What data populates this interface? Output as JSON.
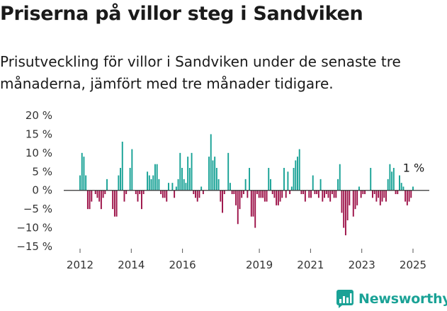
{
  "title": "Priserna på villor steg i Sandviken",
  "subtitle": "Prisutveckling för villor i Sandviken under de senaste tre månaderna, jämfört med tre månader tidigare.",
  "brand": "Newsworthy",
  "colors": {
    "positive": "#16a195",
    "negative": "#9c1047",
    "brand": "#1aa296",
    "zero_line": "#333333",
    "tick_text": "#333333"
  },
  "chart_data": {
    "type": "bar",
    "title": "Priserna på villor steg i Sandviken",
    "xlabel": "",
    "ylabel": "",
    "ylim": [
      -15,
      20
    ],
    "yticks": [
      -15,
      -10,
      -5,
      0,
      5,
      10,
      15,
      20
    ],
    "ytick_labels": [
      "−15 %",
      "−10 %",
      "−5 %",
      "0 %",
      "5 %",
      "10 %",
      "15 %",
      "20 %"
    ],
    "x_start": 2012.0,
    "x_end": 2025.0,
    "xticks": [
      2012,
      2014,
      2016,
      2019,
      2021,
      2023,
      2025
    ],
    "xtick_labels": [
      "2012",
      "2014",
      "2016",
      "2019",
      "2021",
      "2023",
      "2025"
    ],
    "last_value_label": "1 %",
    "values": [
      4,
      10,
      9,
      4,
      -5,
      -5,
      -3,
      0,
      -1,
      -2,
      -3,
      -5,
      -2,
      -1,
      3,
      0,
      0,
      -5,
      -7,
      -7,
      4,
      6,
      13,
      -3,
      -1,
      0,
      6,
      11,
      0,
      -1,
      -3,
      -1,
      -5,
      -1,
      0,
      5,
      4,
      3,
      4,
      7,
      7,
      3,
      -1,
      -2,
      -2,
      -3,
      2,
      0,
      2,
      -2,
      1,
      3,
      10,
      6,
      3,
      2,
      9,
      6,
      10,
      -1,
      -2,
      -3,
      -2,
      1,
      -1,
      0,
      0,
      9,
      15,
      8,
      9,
      6,
      3,
      -3,
      -6,
      -1,
      0,
      10,
      2,
      -1,
      -1,
      -4,
      -9,
      -5,
      -2,
      -1,
      3,
      -2,
      6,
      -7,
      -7,
      -10,
      -1,
      -2,
      -2,
      -2,
      -3,
      -3,
      6,
      3,
      -1,
      -2,
      -4,
      -4,
      -3,
      -2,
      6,
      -2,
      5,
      -1,
      1,
      6,
      8,
      9,
      11,
      -1,
      -1,
      -3,
      0,
      -2,
      -2,
      4,
      -1,
      -1,
      -2,
      3,
      -3,
      -2,
      -1,
      -2,
      -3,
      -1,
      -2,
      -2,
      3,
      7,
      -6,
      -10,
      -12,
      -8,
      -4,
      0,
      -7,
      -5,
      -4,
      1,
      -2,
      -1,
      -1,
      0,
      0,
      6,
      -2,
      -1,
      -3,
      -2,
      -4,
      -3,
      -2,
      -3,
      3,
      7,
      5,
      6,
      -1,
      -1,
      4,
      2,
      1,
      -3,
      -4,
      -3,
      -2,
      1
    ]
  }
}
